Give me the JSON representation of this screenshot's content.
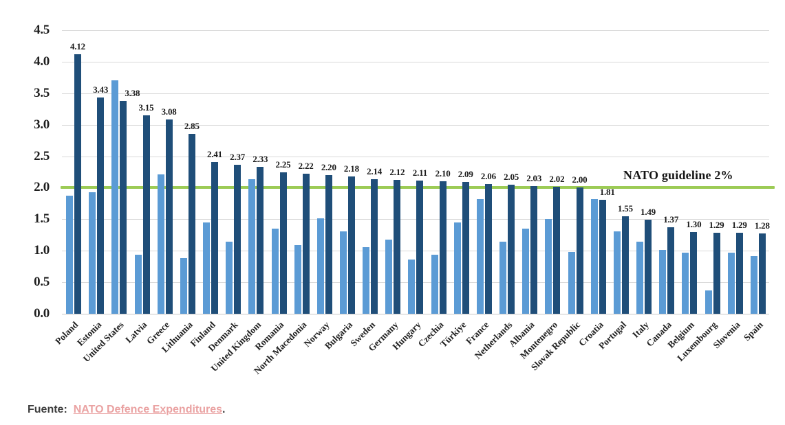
{
  "chart_data": {
    "type": "bar",
    "title": "",
    "xlabel": "",
    "ylabel": "",
    "ylim": [
      0,
      4.5
    ],
    "y_ticks": [
      "4.5",
      "4.0",
      "3.5",
      "3.0",
      "2.5",
      "2.0",
      "1.5",
      "1.0",
      "0.5",
      "0.0"
    ],
    "grid": true,
    "legend": false,
    "categories": [
      "Poland",
      "Estonia",
      "United States",
      "Latvia",
      "Greece",
      "Lithuania",
      "Finland",
      "Denmark",
      "United Kingdom",
      "Romania",
      "North Macedonia",
      "Norway",
      "Bulgaria",
      "Sweden",
      "Germany",
      "Hungary",
      "Czechia",
      "Türkiye",
      "France",
      "Netherlands",
      "Albania",
      "Montenegro",
      "Slovak Republic",
      "Croatia",
      "Portugal",
      "Italy",
      "Canada",
      "Belgium",
      "Luxembourg",
      "Slovenia",
      "Spain"
    ],
    "series": [
      {
        "name": "light-blue-bar",
        "color": "#5b9bd5",
        "data_labels": false,
        "values": [
          1.88,
          1.93,
          3.71,
          0.94,
          2.21,
          0.88,
          1.45,
          1.15,
          2.14,
          1.35,
          1.09,
          1.52,
          1.31,
          1.06,
          1.18,
          0.86,
          0.94,
          1.45,
          1.82,
          1.15,
          1.35,
          1.5,
          0.98,
          1.82,
          1.31,
          1.14,
          1.01,
          0.97,
          0.37,
          0.97,
          0.92
        ]
      },
      {
        "name": "dark-blue-bar",
        "color": "#1f4e79",
        "data_labels": true,
        "values": [
          4.12,
          3.43,
          3.38,
          3.15,
          3.08,
          2.85,
          2.41,
          2.37,
          2.33,
          2.25,
          2.22,
          2.2,
          2.18,
          2.14,
          2.12,
          2.11,
          2.1,
          2.09,
          2.06,
          2.05,
          2.03,
          2.02,
          2.0,
          1.81,
          1.55,
          1.49,
          1.37,
          1.3,
          1.29,
          1.29,
          1.28
        ]
      }
    ],
    "guideline": {
      "value": 2.0,
      "label": "NATO guideline 2%",
      "color": "#9ccb55"
    }
  },
  "footer": {
    "prefix": "Fuente:",
    "link_text": "NATO Defence Expenditures",
    "suffix": ".",
    "link_color": "#eaa2a2",
    "text_color": "#3d3d3d"
  },
  "colors": {
    "background": "#ffffff",
    "grid": "#d9d9d9",
    "axis": "#c6c6c6"
  }
}
